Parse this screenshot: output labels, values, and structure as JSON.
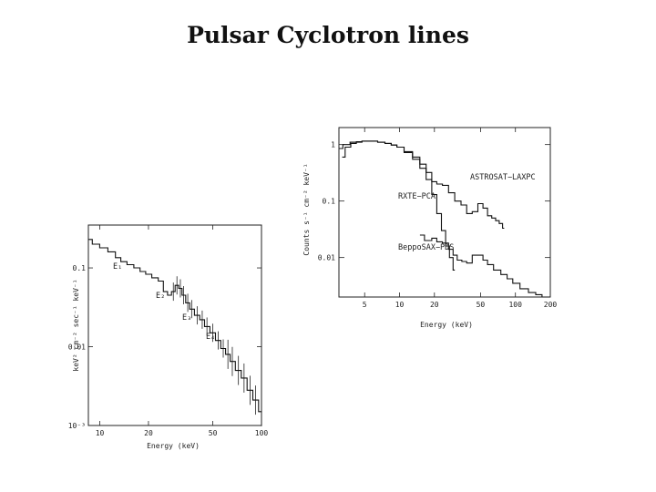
{
  "slide": {
    "title": "Pulsar Cyclotron lines"
  },
  "chart_data": [
    {
      "type": "line",
      "position_hint": "left",
      "xlabel": "Energy (keV)",
      "ylabel": "keV² cm⁻² sec⁻¹ keV⁻¹",
      "xscale": "log",
      "yscale": "log",
      "xlim": [
        8.5,
        100
      ],
      "ylim": [
        0.001,
        0.35
      ],
      "xticks": [
        "10",
        "20",
        "50",
        "100"
      ],
      "yticks": [
        "0.1",
        "0.01",
        "10⁻³"
      ],
      "annotations": [
        "E₁",
        "E₂",
        "E₃",
        "E₄"
      ],
      "series": [
        {
          "x": [
            8.5,
            9.5,
            10.5,
            12,
            13,
            14,
            15.5,
            17,
            18.5,
            20,
            22,
            24,
            25.5,
            27,
            28.5,
            30,
            31.5,
            33,
            35,
            37,
            40,
            43,
            46,
            50,
            54,
            58,
            62,
            66,
            72,
            78,
            85,
            92,
            100
          ],
          "y": [
            0.23,
            0.2,
            0.18,
            0.16,
            0.135,
            0.12,
            0.11,
            0.1,
            0.09,
            0.083,
            0.075,
            0.068,
            0.05,
            0.045,
            0.05,
            0.06,
            0.055,
            0.045,
            0.036,
            0.03,
            0.025,
            0.022,
            0.018,
            0.015,
            0.012,
            0.0095,
            0.008,
            0.0065,
            0.005,
            0.004,
            0.0028,
            0.0021,
            0.0015
          ]
        }
      ]
    },
    {
      "type": "line",
      "position_hint": "right",
      "xlabel": "Energy (keV)",
      "ylabel": "Counts s⁻¹ cm⁻² keV⁻¹",
      "xscale": "log",
      "yscale": "log",
      "xlim": [
        3,
        200
      ],
      "ylim": [
        0.002,
        2
      ],
      "xticks": [
        "5",
        "10",
        "20",
        "50",
        "100",
        "200"
      ],
      "yticks": [
        "1",
        "0.1",
        "0.01"
      ],
      "series": [
        {
          "name": "ASTROSAT−LAXPC",
          "x": [
            3.2,
            3.6,
            4,
            4.5,
            5,
            6,
            7,
            8,
            9,
            10,
            12,
            14,
            16,
            18,
            20,
            22,
            25,
            28,
            32,
            36,
            40,
            45,
            50,
            55,
            60,
            65,
            70,
            75,
            80
          ],
          "y": [
            0.6,
            0.9,
            1.05,
            1.1,
            1.15,
            1.15,
            1.1,
            1.05,
            0.98,
            0.9,
            0.75,
            0.6,
            0.45,
            0.32,
            0.22,
            0.2,
            0.19,
            0.14,
            0.1,
            0.085,
            0.06,
            0.065,
            0.09,
            0.075,
            0.055,
            0.05,
            0.045,
            0.04,
            0.033
          ]
        },
        {
          "name": "RXTE−PCA",
          "x": [
            3,
            3.5,
            4,
            4.5,
            5,
            6,
            7,
            8,
            9,
            10,
            12,
            14,
            16,
            18,
            20,
            22,
            24,
            26,
            28,
            30
          ],
          "y": [
            0.85,
            1.0,
            1.1,
            1.12,
            1.15,
            1.15,
            1.1,
            1.05,
            0.98,
            0.9,
            0.72,
            0.55,
            0.38,
            0.24,
            0.13,
            0.06,
            0.03,
            0.016,
            0.01,
            0.006
          ]
        },
        {
          "name": "BeppoSAX−PDS",
          "x": [
            15,
            18,
            20,
            22,
            25,
            28,
            30,
            33,
            36,
            40,
            45,
            50,
            55,
            60,
            70,
            80,
            90,
            100,
            120,
            140,
            160,
            180,
            200
          ],
          "y": [
            0.025,
            0.02,
            0.022,
            0.019,
            0.018,
            0.014,
            0.011,
            0.009,
            0.0085,
            0.008,
            0.011,
            0.011,
            0.009,
            0.0075,
            0.006,
            0.005,
            0.0042,
            0.0035,
            0.0028,
            0.0024,
            0.0022,
            0.002,
            0.002
          ]
        }
      ]
    }
  ]
}
